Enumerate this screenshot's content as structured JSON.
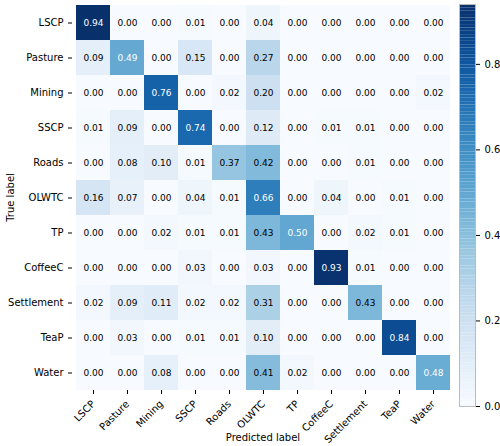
{
  "chart_data": {
    "type": "heatmap",
    "xlabel": "Predicted label",
    "ylabel": "True label",
    "categories": [
      "LSCP",
      "Pasture",
      "Mining",
      "SSCP",
      "Roads",
      "OLWTC",
      "TP",
      "CoffeeC",
      "Settlement",
      "TeaP",
      "Water"
    ],
    "values": [
      [
        0.94,
        0.0,
        0.0,
        0.01,
        0.0,
        0.04,
        0.0,
        0.0,
        0.0,
        0.0,
        0.0
      ],
      [
        0.09,
        0.49,
        0.0,
        0.15,
        0.0,
        0.27,
        0.0,
        0.0,
        0.0,
        0.0,
        0.0
      ],
      [
        0.0,
        0.0,
        0.76,
        0.0,
        0.02,
        0.2,
        0.0,
        0.0,
        0.0,
        0.0,
        0.02
      ],
      [
        0.01,
        0.09,
        0.0,
        0.74,
        0.0,
        0.12,
        0.0,
        0.01,
        0.01,
        0.0,
        0.0
      ],
      [
        0.0,
        0.08,
        0.1,
        0.01,
        0.37,
        0.42,
        0.0,
        0.0,
        0.01,
        0.0,
        0.0
      ],
      [
        0.16,
        0.07,
        0.0,
        0.04,
        0.01,
        0.66,
        0.0,
        0.04,
        0.0,
        0.01,
        0.0
      ],
      [
        0.0,
        0.0,
        0.02,
        0.01,
        0.01,
        0.43,
        0.5,
        0.0,
        0.02,
        0.01,
        0.0
      ],
      [
        0.0,
        0.0,
        0.0,
        0.03,
        0.0,
        0.03,
        0.0,
        0.93,
        0.01,
        0.0,
        0.0
      ],
      [
        0.02,
        0.09,
        0.11,
        0.02,
        0.02,
        0.31,
        0.0,
        0.0,
        0.43,
        0.0,
        0.0
      ],
      [
        0.0,
        0.03,
        0.0,
        0.01,
        0.01,
        0.1,
        0.0,
        0.0,
        0.0,
        0.84,
        0.0
      ],
      [
        0.0,
        0.0,
        0.08,
        0.0,
        0.0,
        0.41,
        0.02,
        0.0,
        0.0,
        0.0,
        0.48
      ]
    ],
    "value_labels": [
      [
        "0.94",
        "0.00",
        "0.00",
        "0.01",
        "0.00",
        "0.04",
        "0.00",
        "0.00",
        "0.00",
        "0.00",
        "0.00"
      ],
      [
        "0.09",
        "0.49",
        "0.00",
        "0.15",
        "0.00",
        "0.27",
        "0.00",
        "0.00",
        "0.00",
        "0.00",
        "0.00"
      ],
      [
        "0.00",
        "0.00",
        "0.76",
        "0.00",
        "0.02",
        "0.20",
        "0.00",
        "0.00",
        "0.00",
        "0.00",
        "0.02"
      ],
      [
        "0.01",
        "0.09",
        "0.00",
        "0.74",
        "0.00",
        "0.12",
        "0.00",
        "0.01",
        "0.01",
        "0.00",
        "0.00"
      ],
      [
        "0.00",
        "0.08",
        "0.10",
        "0.01",
        "0.37",
        "0.42",
        "0.00",
        "0.00",
        "0.01",
        "0.00",
        "0.00"
      ],
      [
        "0.16",
        "0.07",
        "0.00",
        "0.04",
        "0.01",
        "0.66",
        "0.00",
        "0.04",
        "0.00",
        "0.01",
        "0.00"
      ],
      [
        "0.00",
        "0.00",
        "0.02",
        "0.01",
        "0.01",
        "0.43",
        "0.50",
        "0.00",
        "0.02",
        "0.01",
        "0.00"
      ],
      [
        "0.00",
        "0.00",
        "0.00",
        "0.03",
        "0.00",
        "0.03",
        "0.00",
        "0.93",
        "0.01",
        "0.00",
        "0.00"
      ],
      [
        "0.02",
        "0.09",
        "0.11",
        "0.02",
        "0.02",
        "0.31",
        "0.00",
        "0.00",
        "0.43",
        "0.00",
        "0.00"
      ],
      [
        "0.00",
        "0.03",
        "0.00",
        "0.01",
        "0.01",
        "0.10",
        "0.00",
        "0.00",
        "0.00",
        "0.84",
        "0.00"
      ],
      [
        "0.00",
        "0.00",
        "0.08",
        "0.00",
        "0.00",
        "0.41",
        "0.02",
        "0.00",
        "0.00",
        "0.00",
        "0.48"
      ]
    ],
    "data_labels": true,
    "color": "Blues",
    "colorbar": {
      "range": [
        0,
        0.94
      ],
      "ticks": [
        {
          "value": 0,
          "label": "0.0"
        },
        {
          "value": 0.2,
          "label": "0.2"
        },
        {
          "value": 0.4,
          "label": "0.4"
        },
        {
          "value": 0.6,
          "label": "0.6"
        },
        {
          "value": 0.8,
          "label": "0.8"
        }
      ]
    }
  }
}
